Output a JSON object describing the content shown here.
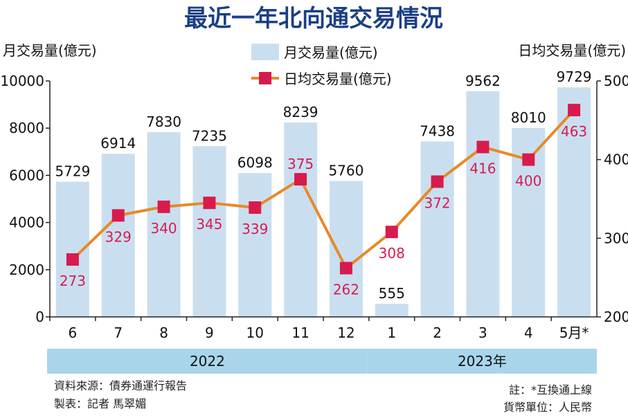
{
  "chart_data": {
    "type": "bar+line",
    "title": "最近一年北向通交易情況",
    "ylabel_left": "月交易量(億元)",
    "ylabel_right": "日均交易量(億元)",
    "categories": [
      "6",
      "7",
      "8",
      "9",
      "10",
      "11",
      "12",
      "1",
      "2",
      "3",
      "4",
      "5月*"
    ],
    "year_groups": [
      {
        "label": "2022",
        "count": 7
      },
      {
        "label": "2023年",
        "count": 5
      }
    ],
    "series": [
      {
        "name": "月交易量(億元)",
        "type": "bar",
        "axis": "left",
        "color": "#c9dff0",
        "values": [
          5729,
          6914,
          7830,
          7235,
          6098,
          8239,
          5760,
          555,
          7438,
          9562,
          8010,
          9729
        ]
      },
      {
        "name": "日均交易量(億元)",
        "type": "line",
        "axis": "right",
        "color": "#e8892a",
        "marker_color": "#d81b4f",
        "values": [
          273,
          329,
          340,
          345,
          339,
          375,
          262,
          308,
          372,
          416,
          400,
          463
        ]
      }
    ],
    "ylim_left": [
      0,
      10000
    ],
    "yticks_left": [
      0,
      2000,
      4000,
      6000,
      8000,
      10000
    ],
    "ylim_right": [
      200,
      500
    ],
    "yticks_right": [
      200,
      300,
      400,
      500
    ],
    "grid": false,
    "legend": "top-center"
  },
  "footer": {
    "source": "資料來源：債券通運行報告",
    "maker": "製表：記者 馬翠媚",
    "note": "註：*互換通上線",
    "unit": "貨幣單位：人民幣"
  },
  "colors": {
    "title": "#1b3f86",
    "year_band": "#a9d5ea",
    "label_red": "#d81b4f"
  }
}
